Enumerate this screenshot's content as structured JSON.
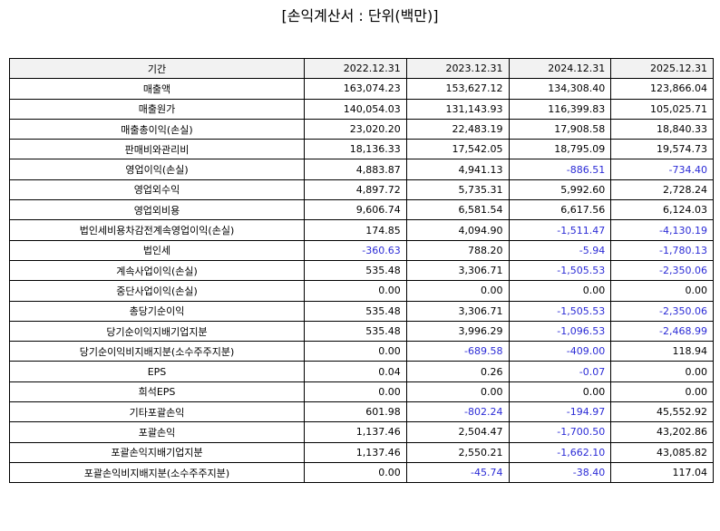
{
  "title": "[손익계산서 : 단위(백만)]",
  "colors": {
    "negative": "#2b2bd6",
    "header_bg": "#f2f2f2"
  },
  "table": {
    "header": {
      "label": "기간",
      "periods": [
        "2022.12.31",
        "2023.12.31",
        "2024.12.31",
        "2025.12.31"
      ]
    },
    "rows": [
      {
        "label": "매출액",
        "values": [
          "163,074.23",
          "153,627.12",
          "134,308.40",
          "123,866.04"
        ]
      },
      {
        "label": "매출원가",
        "values": [
          "140,054.03",
          "131,143.93",
          "116,399.83",
          "105,025.71"
        ]
      },
      {
        "label": "매출총이익(손실)",
        "values": [
          "23,020.20",
          "22,483.19",
          "17,908.58",
          "18,840.33"
        ]
      },
      {
        "label": "판매비와관리비",
        "values": [
          "18,136.33",
          "17,542.05",
          "18,795.09",
          "19,574.73"
        ]
      },
      {
        "label": "영업이익(손실)",
        "values": [
          "4,883.87",
          "4,941.13",
          "-886.51",
          "-734.40"
        ]
      },
      {
        "label": "영업외수익",
        "values": [
          "4,897.72",
          "5,735.31",
          "5,992.60",
          "2,728.24"
        ]
      },
      {
        "label": "영업외비용",
        "values": [
          "9,606.74",
          "6,581.54",
          "6,617.56",
          "6,124.03"
        ]
      },
      {
        "label": "법인세비용차감전계속영업이익(손실)",
        "values": [
          "174.85",
          "4,094.90",
          "-1,511.47",
          "-4,130.19"
        ]
      },
      {
        "label": "법인세",
        "values": [
          "-360.63",
          "788.20",
          "-5.94",
          "-1,780.13"
        ]
      },
      {
        "label": "계속사업이익(손실)",
        "values": [
          "535.48",
          "3,306.71",
          "-1,505.53",
          "-2,350.06"
        ]
      },
      {
        "label": "중단사업이익(손실)",
        "values": [
          "0.00",
          "0.00",
          "0.00",
          "0.00"
        ]
      },
      {
        "label": "총당기순이익",
        "values": [
          "535.48",
          "3,306.71",
          "-1,505.53",
          "-2,350.06"
        ]
      },
      {
        "label": "당기순이익지배기업지분",
        "values": [
          "535.48",
          "3,996.29",
          "-1,096.53",
          "-2,468.99"
        ]
      },
      {
        "label": "당기순이익비지배지분(소수주주지분)",
        "values": [
          "0.00",
          "-689.58",
          "-409.00",
          "118.94"
        ]
      },
      {
        "label": "EPS",
        "values": [
          "0.04",
          "0.26",
          "-0.07",
          "0.00"
        ]
      },
      {
        "label": "희석EPS",
        "values": [
          "0.00",
          "0.00",
          "0.00",
          "0.00"
        ]
      },
      {
        "label": "기타포괄손익",
        "values": [
          "601.98",
          "-802.24",
          "-194.97",
          "45,552.92"
        ]
      },
      {
        "label": "포괄손익",
        "values": [
          "1,137.46",
          "2,504.47",
          "-1,700.50",
          "43,202.86"
        ]
      },
      {
        "label": "포괄손익지배기업지분",
        "values": [
          "1,137.46",
          "2,550.21",
          "-1,662.10",
          "43,085.82"
        ]
      },
      {
        "label": "포괄손익비지배지분(소수주주지분)",
        "values": [
          "0.00",
          "-45.74",
          "-38.40",
          "117.04"
        ]
      }
    ]
  }
}
